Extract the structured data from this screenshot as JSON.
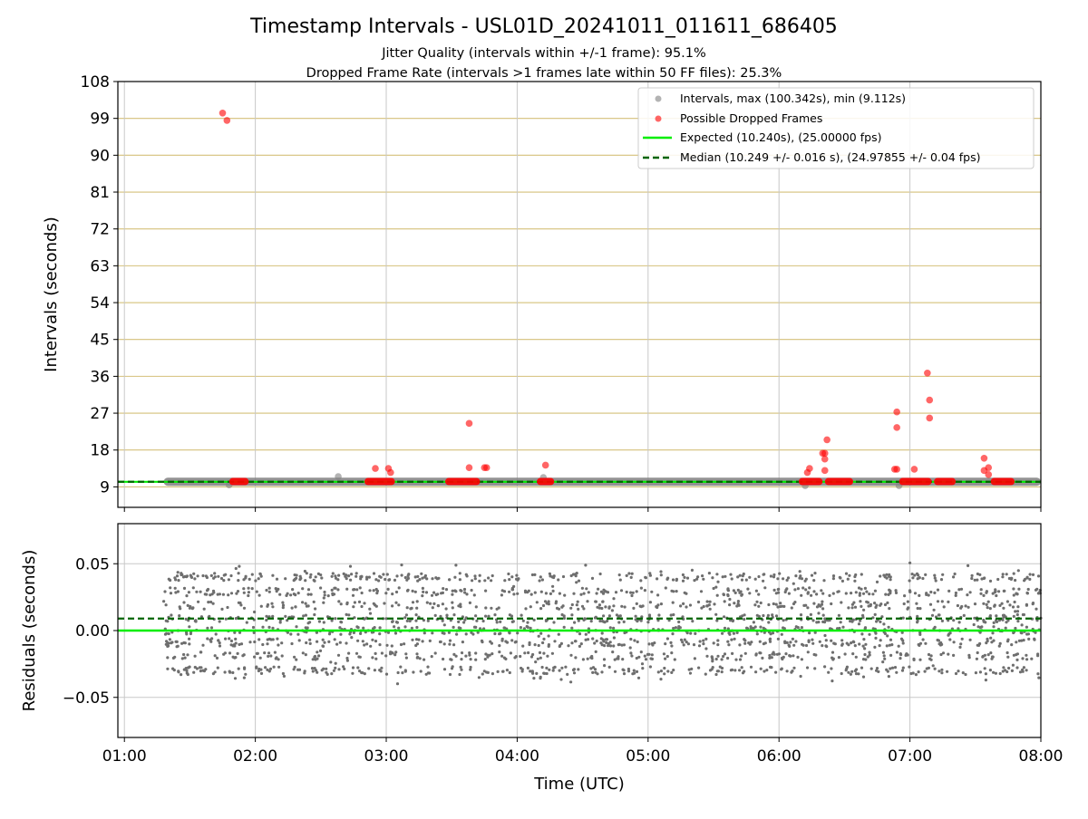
{
  "chart_data": [
    {
      "type": "scatter",
      "title": "Timestamp Intervals - USL01D_20241011_011611_686405",
      "subtitle_lines": [
        "Jitter Quality (intervals within +/-1 frame): 95.1%",
        "Dropped Frame Rate (intervals >1 frames late within 50 FF files): 25.3%"
      ],
      "xlabel": "",
      "ylabel": "Intervals (seconds)",
      "x_is_time_utc": true,
      "xlim": [
        "00:57",
        "08:00"
      ],
      "ylim": [
        4,
        108
      ],
      "yticks": [
        9,
        18,
        27,
        36,
        45,
        54,
        63,
        72,
        81,
        90,
        99,
        108
      ],
      "grid": true,
      "legend_placement": "top-right",
      "legend": [
        "Intervals, max (100.342s), min (9.112s)",
        "Possible Dropped Frames",
        "Expected (10.240s), (25.00000 fps)",
        "Median (10.249 +/- 0.016 s), (24.97855 +/- 0.04 fps)"
      ],
      "series": [
        {
          "name": "Intervals, max (100.342s), min (9.112s)",
          "color": "#808080",
          "style": "dense band of points",
          "x_range": [
            "01:18",
            "08:00"
          ],
          "y_approx": 10.25,
          "extra_points": [
            {
              "x": "01:48",
              "y": 9.5
            },
            {
              "x": "02:38",
              "y": 11.5
            },
            {
              "x": "04:12",
              "y": 11.3
            },
            {
              "x": "06:12",
              "y": 9.3
            },
            {
              "x": "06:55",
              "y": 9.3
            }
          ]
        },
        {
          "name": "Possible Dropped Frames",
          "color": "#ff0000",
          "clusters": [
            {
              "x_start": "01:48",
              "x_end": "01:57",
              "y": 10.3
            },
            {
              "x_start": "02:50",
              "x_end": "03:04",
              "y": 10.3
            },
            {
              "x_start": "03:27",
              "x_end": "03:43",
              "y": 10.3
            },
            {
              "x_start": "04:09",
              "x_end": "04:17",
              "y": 10.3
            },
            {
              "x_start": "06:09",
              "x_end": "06:20",
              "y": 10.3
            },
            {
              "x_start": "06:21",
              "x_end": "06:34",
              "y": 10.3
            },
            {
              "x_start": "06:55",
              "x_end": "07:10",
              "y": 10.3
            },
            {
              "x_start": "07:11",
              "x_end": "07:21",
              "y": 10.3
            },
            {
              "x_start": "07:37",
              "x_end": "07:48",
              "y": 10.3
            }
          ],
          "points": [
            {
              "x": "01:45",
              "y": 100.3
            },
            {
              "x": "01:47",
              "y": 98.5
            },
            {
              "x": "02:55",
              "y": 13.5
            },
            {
              "x": "03:01",
              "y": 13.5
            },
            {
              "x": "03:02",
              "y": 12.5
            },
            {
              "x": "03:38",
              "y": 24.5
            },
            {
              "x": "03:38",
              "y": 13.7
            },
            {
              "x": "03:45",
              "y": 13.7
            },
            {
              "x": "03:46",
              "y": 13.7
            },
            {
              "x": "04:13",
              "y": 14.3
            },
            {
              "x": "06:14",
              "y": 13.5
            },
            {
              "x": "06:13",
              "y": 12.5
            },
            {
              "x": "06:20",
              "y": 17.2
            },
            {
              "x": "06:21",
              "y": 17.2
            },
            {
              "x": "06:21",
              "y": 15.8
            },
            {
              "x": "06:22",
              "y": 20.5
            },
            {
              "x": "06:21",
              "y": 13.0
            },
            {
              "x": "06:54",
              "y": 27.3
            },
            {
              "x": "06:54",
              "y": 23.5
            },
            {
              "x": "06:53",
              "y": 13.3
            },
            {
              "x": "06:54",
              "y": 13.3
            },
            {
              "x": "07:02",
              "y": 13.3
            },
            {
              "x": "07:08",
              "y": 36.8
            },
            {
              "x": "07:09",
              "y": 30.2
            },
            {
              "x": "07:09",
              "y": 25.8
            },
            {
              "x": "07:34",
              "y": 16.0
            },
            {
              "x": "07:34",
              "y": 13.0
            },
            {
              "x": "07:36",
              "y": 13.7
            },
            {
              "x": "07:36",
              "y": 12.0
            }
          ]
        },
        {
          "name": "Expected (10.240s), (25.00000 fps)",
          "color": "#00ee00",
          "line": "solid",
          "y": 10.24
        },
        {
          "name": "Median (10.249 +/- 0.016 s), (24.97855 +/- 0.04 fps)",
          "color": "#006400",
          "line": "dashed",
          "y": 10.249
        }
      ]
    },
    {
      "type": "scatter",
      "title": "",
      "xlabel": "Time (UTC)",
      "ylabel": "Residuals (seconds)",
      "xlim": [
        "00:57",
        "08:00"
      ],
      "xticks": [
        "01:00",
        "02:00",
        "03:00",
        "04:00",
        "05:00",
        "06:00",
        "07:00",
        "08:00"
      ],
      "ylim": [
        -0.08,
        0.08
      ],
      "yticks": [
        "−0.05",
        "0.00",
        "0.05"
      ],
      "ytick_values": [
        -0.05,
        0.0,
        0.05
      ],
      "grid": true,
      "series": [
        {
          "name": "",
          "color": "#808080",
          "style": "dense residual scatter",
          "x_range": [
            "01:18",
            "08:00"
          ],
          "residual_levels": [
            -0.03,
            -0.019,
            -0.009,
            0.0,
            0.009,
            0.019,
            0.029,
            0.04
          ],
          "residual_range": [
            -0.04,
            0.052
          ]
        },
        {
          "name": "",
          "color": "#00ee00",
          "line": "solid",
          "y": 0.0
        },
        {
          "name": "",
          "color": "#006400",
          "line": "dashed",
          "y": 0.009
        }
      ]
    }
  ]
}
